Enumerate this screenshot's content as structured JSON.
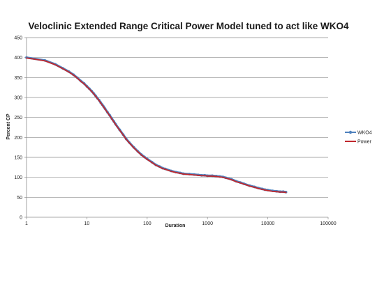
{
  "chart_data": {
    "type": "line",
    "title": "Veloclinic Extended Range Critical Power Model tuned to act like WKO4",
    "xlabel": "Duration",
    "ylabel": "Percent CP",
    "x_scale": "log",
    "xlim": [
      1,
      100000
    ],
    "ylim": [
      0,
      450
    ],
    "x_ticks": [
      1,
      10,
      100,
      1000,
      10000,
      100000
    ],
    "x_tick_labels": [
      "1",
      "10",
      "100",
      "1000",
      "10000",
      "100000"
    ],
    "y_ticks": [
      0,
      50,
      100,
      150,
      200,
      250,
      300,
      350,
      400,
      450
    ],
    "y_tick_labels": [
      "0",
      "50",
      "100",
      "150",
      "200",
      "250",
      "300",
      "350",
      "400",
      "450"
    ],
    "grid": "horizontal major gridlines",
    "legend": "right",
    "series": [
      {
        "name": "WKO4",
        "color": "#4f81bd",
        "marker": "circle",
        "x": [
          1,
          2,
          3,
          4,
          5,
          6,
          7,
          8,
          9,
          10,
          11,
          12,
          13,
          14,
          15,
          16,
          17,
          18,
          19,
          20,
          22,
          24,
          26,
          28,
          30,
          35,
          40,
          45,
          50,
          60,
          70,
          80,
          90,
          100,
          120,
          140,
          160,
          180,
          200,
          250,
          300,
          350,
          400,
          500,
          600,
          700,
          800,
          900,
          1000,
          1200,
          1400,
          1600,
          1800,
          2000,
          2500,
          3000,
          3500,
          4000,
          5000,
          6000,
          7000,
          8000,
          9000,
          10000,
          12000,
          14000,
          16000,
          18000,
          20000
        ],
        "y": [
          400,
          393,
          383,
          373,
          365,
          357,
          349,
          341,
          335,
          328,
          322,
          316,
          310,
          304,
          298,
          293,
          287,
          282,
          277,
          272,
          263,
          255,
          247,
          240,
          233,
          219,
          207,
          196,
          188,
          175,
          165,
          157,
          151,
          146,
          138,
          131,
          127,
          123,
          121,
          116,
          113,
          111,
          109,
          108,
          107,
          106,
          105,
          105,
          104,
          104,
          103,
          102,
          101,
          99,
          95,
          90,
          87,
          84,
          79,
          76,
          73,
          71,
          69,
          68,
          66,
          65,
          64,
          64,
          63
        ]
      },
      {
        "name": "Power",
        "color": "#c0282d",
        "marker": "none",
        "x": [
          1,
          2,
          3,
          4,
          5,
          6,
          7,
          8,
          9,
          10,
          11,
          12,
          13,
          14,
          15,
          16,
          17,
          18,
          19,
          20,
          22,
          24,
          26,
          28,
          30,
          35,
          40,
          45,
          50,
          60,
          70,
          80,
          90,
          100,
          120,
          140,
          160,
          180,
          200,
          250,
          300,
          350,
          400,
          500,
          600,
          700,
          800,
          900,
          1000,
          1200,
          1400,
          1600,
          1800,
          2000,
          2500,
          3000,
          3500,
          4000,
          5000,
          6000,
          7000,
          8000,
          9000,
          10000,
          12000,
          14000,
          16000,
          18000,
          20000
        ],
        "y": [
          399,
          392,
          382,
          372,
          364,
          356,
          348,
          340,
          334,
          327,
          321,
          315,
          309,
          303,
          297,
          292,
          286,
          281,
          276,
          271,
          262,
          254,
          246,
          239,
          232,
          218,
          206,
          195,
          187,
          174,
          164,
          156,
          150,
          145,
          137,
          130,
          126,
          122,
          120,
          115,
          112,
          110,
          108,
          107,
          106,
          105,
          104,
          104,
          103,
          103,
          102,
          101,
          100,
          98,
          94,
          89,
          86,
          83,
          78,
          75,
          72,
          70,
          68,
          67,
          65,
          64,
          63,
          63,
          62
        ]
      }
    ]
  }
}
